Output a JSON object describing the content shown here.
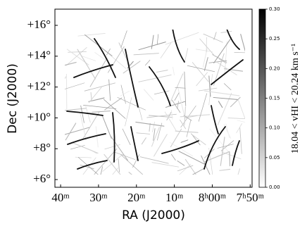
{
  "chart_data": {
    "type": "image",
    "xlabel": "RA (J2000)",
    "ylabel": "Dec (J2000)",
    "xlim": [
      521.5,
      469.5
    ],
    "xticks": [
      {
        "value": 520,
        "label": "40ᵐ"
      },
      {
        "value": 510,
        "label": "30ᵐ"
      },
      {
        "value": 500,
        "label": "20ᵐ"
      },
      {
        "value": 490,
        "label": "10ᵐ"
      },
      {
        "value": 480,
        "label": "8ʰ00ᵐ"
      },
      {
        "value": 470,
        "label": "7ʰ50ᵐ"
      }
    ],
    "ylim": [
      5.5,
      17.05
    ],
    "yticks": [
      {
        "value": 16,
        "label": "+16°"
      },
      {
        "value": 14,
        "label": "+14°"
      },
      {
        "value": 12,
        "label": "+12°"
      },
      {
        "value": 10,
        "label": "+10°"
      },
      {
        "value": 8,
        "label": "+8°"
      },
      {
        "value": 6,
        "label": "+6°"
      }
    ],
    "colorbar": {
      "label": "18.04 < vHI < 20.24 km s⁻¹",
      "lim": [
        0,
        0.3
      ],
      "ticks": [
        {
          "value": 0,
          "label": "0.00"
        },
        {
          "value": 0.05,
          "label": "0.05"
        },
        {
          "value": 0.1,
          "label": "0.10"
        },
        {
          "value": 0.15,
          "label": "0.15"
        },
        {
          "value": 0.2,
          "label": "0.20"
        },
        {
          "value": 0.25,
          "label": "0.25"
        },
        {
          "value": 0.3,
          "label": "0.30"
        }
      ]
    }
  }
}
